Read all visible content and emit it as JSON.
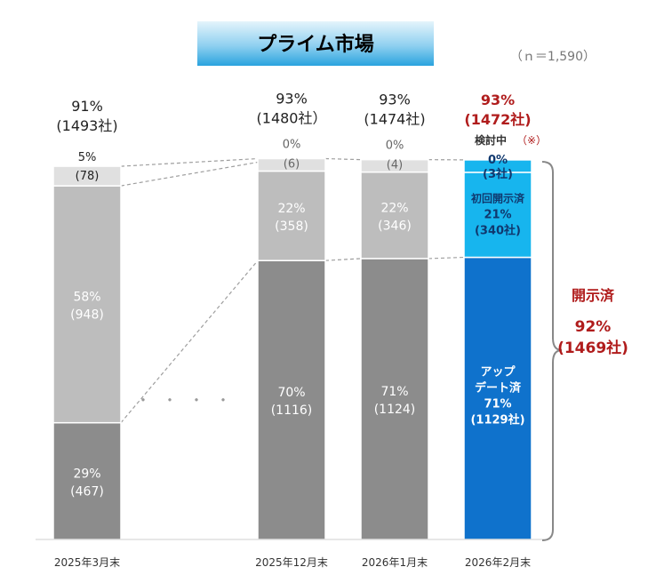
{
  "chart_data": {
    "type": "bar",
    "stacked": true,
    "title": "プライム市場",
    "n_note": "（ｎ＝1,590）",
    "ellipsis": "・・・・",
    "categories": [
      "2025年3月末",
      "2025年12月末",
      "2026年1月末",
      "2026年2月末"
    ],
    "totals": [
      {
        "pct": "91%",
        "count": "(1493社)"
      },
      {
        "pct": "93%",
        "count": "(1480社）"
      },
      {
        "pct": "93%",
        "count": "(1474社)"
      },
      {
        "pct": "93%",
        "count": "(1472社)"
      }
    ],
    "segments": [
      [
        {
          "pct": "29%",
          "count": "(467)",
          "value": 467
        },
        {
          "pct": "58%",
          "count": "(948)",
          "value": 948
        },
        {
          "pct": "5%",
          "count": "(78)",
          "value": 78
        }
      ],
      [
        {
          "pct": "70%",
          "count": "(1116)",
          "value": 1116
        },
        {
          "pct": "22%",
          "count": "(358)",
          "value": 358
        },
        {
          "pct": "0%",
          "count": "(6)",
          "value": 6
        }
      ],
      [
        {
          "pct": "71%",
          "count": "(1124)",
          "value": 1124
        },
        {
          "pct": "22%",
          "count": "(346)",
          "value": 346
        },
        {
          "pct": "0%",
          "count": "(4)",
          "value": 4
        }
      ],
      [
        {
          "label1": "アップ",
          "label2": "デート済",
          "pct": "71%",
          "count": "(1129社)",
          "value": 1129
        },
        {
          "label1": "初回開示済",
          "pct": "21%",
          "count": "(340社)",
          "value": 340
        },
        {
          "label1": "検討中",
          "note": "（※）",
          "pct": "0%",
          "count": "(3社)",
          "value": 3
        }
      ]
    ],
    "bracket": {
      "label": "開示済",
      "pct": "92%",
      "count": "(1469社)"
    },
    "colors": {
      "dark_gray": "#8c8c8c",
      "mid_gray": "#bdbdbd",
      "light_gray": "#e0e0e0",
      "blue": "#0f72cc",
      "light_blue": "#17b5ee",
      "red": "#b01c1c",
      "title_grad_top": "#d6eef9",
      "title_grad_bottom": "#2fa8e0"
    }
  }
}
